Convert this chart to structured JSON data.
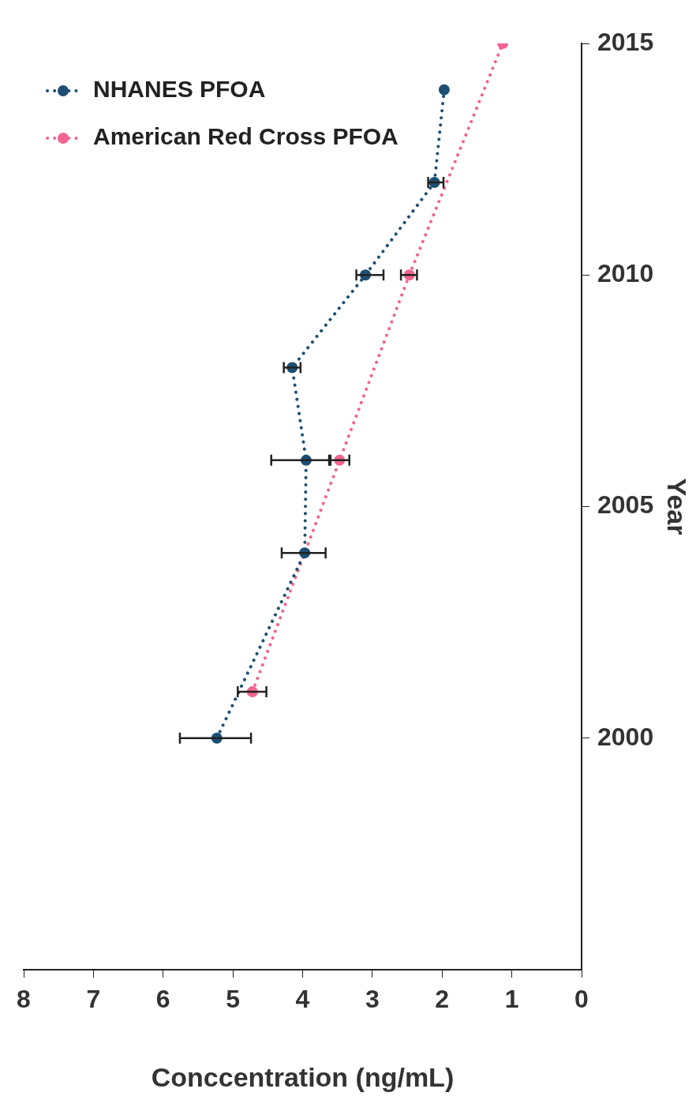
{
  "chart_data": {
    "type": "line",
    "orientation": "horizontal",
    "xlabel": "Conccentration (ng/mL)",
    "ylabel": "Year",
    "xlim": [
      8,
      0
    ],
    "xticks": [
      0,
      1,
      2,
      3,
      4,
      5,
      6,
      7,
      8
    ],
    "ylim": [
      1995,
      2015
    ],
    "yticks": [
      2000,
      2005,
      2010,
      2015
    ],
    "grid": false,
    "legend": "top left",
    "marker": "circle",
    "line_style": "dotted",
    "series": [
      {
        "name": "NHANES PFOA",
        "color": "#1d4f73",
        "x": [
          2000,
          2004,
          2006,
          2008,
          2010,
          2012,
          2014
        ],
        "values": [
          5.23,
          3.97,
          3.95,
          4.15,
          3.1,
          2.11,
          1.97
        ],
        "errors": [
          [
            4.74,
            5.76
          ],
          [
            3.67,
            4.3
          ],
          [
            3.6,
            4.45
          ],
          [
            4.03,
            4.27
          ],
          [
            2.84,
            3.23
          ],
          [
            1.98,
            2.2
          ],
          null
        ]
      },
      {
        "name": "American Red Cross PFOA",
        "color": "#f2648f",
        "x": [
          2001,
          2006,
          2010,
          2015
        ],
        "values": [
          4.72,
          3.47,
          2.47,
          1.13
        ],
        "errors": [
          [
            4.52,
            4.93
          ],
          [
            3.33,
            3.62
          ],
          [
            2.36,
            2.59
          ],
          null
        ]
      }
    ]
  }
}
